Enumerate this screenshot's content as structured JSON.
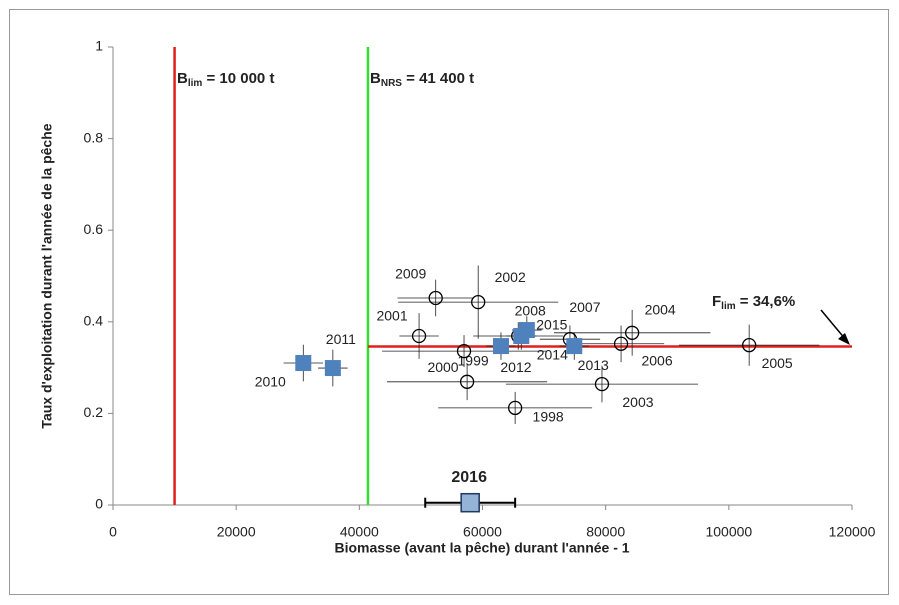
{
  "chart_data": {
    "type": "scatter",
    "xlabel": "Biomasse (avant la pêche) durant l'année - 1",
    "ylabel": "Taux d'exploitation durant l'année de la pêche",
    "xlim": [
      0,
      120000
    ],
    "xticks": [
      0,
      20000,
      40000,
      60000,
      80000,
      100000,
      120000
    ],
    "ylim": [
      0,
      1
    ],
    "yticks": [
      0,
      0.2,
      0.4,
      0.6,
      0.8,
      1
    ],
    "reference_lines": [
      {
        "orientation": "vertical",
        "symbol": "B",
        "sub": "lim",
        "text": " = 10 000 t",
        "value": 10000,
        "color": "#e0201b"
      },
      {
        "orientation": "vertical",
        "symbol": "B",
        "sub": "NRS",
        "text": " = 41 400 t",
        "value": 41400,
        "color": "#33dd33"
      },
      {
        "orientation": "horizontal",
        "symbol": "F",
        "sub": "lim",
        "text": " = 34,6%",
        "value": 0.346,
        "color": "#e0201b"
      }
    ],
    "series": [
      {
        "marker": "circle",
        "color": "#000000",
        "points": [
          {
            "label": "1998",
            "x": 65300,
            "y": 0.212,
            "xerr": 12500,
            "yerr": 0.035
          },
          {
            "label": "1999",
            "x": 57500,
            "y": 0.269,
            "xerr": 13000,
            "yerr": 0.04
          },
          {
            "label": "2000",
            "x": 57000,
            "y": 0.336,
            "xerr": 13300,
            "yerr": 0.035
          },
          {
            "label": "2001",
            "x": 49700,
            "y": 0.369,
            "xerr": 3200,
            "yerr": 0.05
          },
          {
            "label": "2002",
            "x": 59300,
            "y": 0.443,
            "xerr": 13000,
            "yerr": 0.08
          },
          {
            "label": "2003",
            "x": 79400,
            "y": 0.264,
            "xerr": 15600,
            "yerr": 0.04
          },
          {
            "label": "2004",
            "x": 84300,
            "y": 0.376,
            "xerr": 12700,
            "yerr": 0.05
          },
          {
            "label": "2005",
            "x": 103300,
            "y": 0.349,
            "xerr": 11400,
            "yerr": 0.045
          },
          {
            "label": "2006",
            "x": 82500,
            "y": 0.352,
            "xerr": 7000,
            "yerr": 0.04
          },
          {
            "label": "2007",
            "x": 74200,
            "y": 0.362,
            "xerr": 4900,
            "yerr": 0.03
          },
          {
            "label": "2008",
            "x": 65800,
            "y": 0.369,
            "xerr": 7300,
            "yerr": 0.03
          },
          {
            "label": "2009",
            "x": 52400,
            "y": 0.452,
            "xerr": 6200,
            "yerr": 0.04
          }
        ]
      },
      {
        "marker": "square",
        "color": "#4f81bd",
        "points": [
          {
            "label": "2010",
            "x": 30900,
            "y": 0.31,
            "xerr": 3200,
            "yerr": 0.04
          },
          {
            "label": "2011",
            "x": 35700,
            "y": 0.299,
            "xerr": 2400,
            "yerr": 0.04
          },
          {
            "label": "2012",
            "x": 63000,
            "y": 0.347,
            "xerr": 2400,
            "yerr": 0.03
          },
          {
            "label": "2013",
            "x": 74900,
            "y": 0.347,
            "xerr": 2400,
            "yerr": 0.03
          },
          {
            "label": "2014",
            "x": 66300,
            "y": 0.369,
            "xerr": 2400,
            "yerr": 0.03
          },
          {
            "label": "2015",
            "x": 67200,
            "y": 0.382,
            "xerr": 2400,
            "yerr": 0.03
          }
        ]
      },
      {
        "marker": "square",
        "color": "#95b3d7",
        "highlight": true,
        "points": [
          {
            "label": "2016",
            "x": 58000,
            "y": 0.005,
            "xerr": 7300,
            "yerr": 0
          }
        ]
      }
    ]
  }
}
